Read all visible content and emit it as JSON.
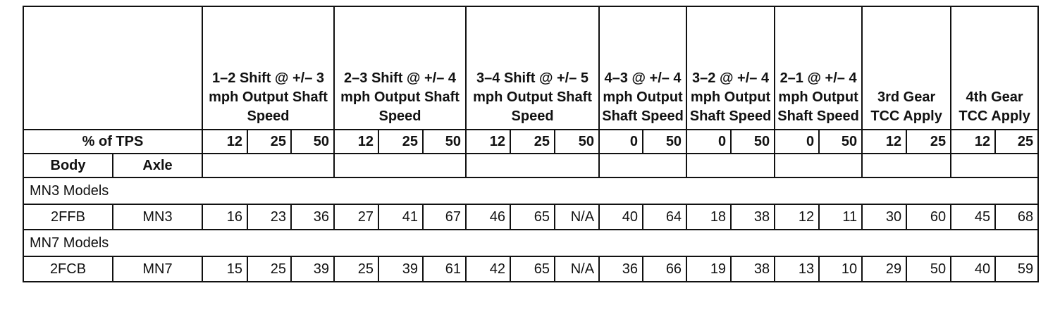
{
  "header_groups": [
    {
      "label": "1–2 Shift @ +/– 3 mph Output Shaft Speed",
      "tps": [
        "12",
        "25",
        "50"
      ]
    },
    {
      "label": "2–3 Shift @ +/– 4 mph Output Shaft Speed",
      "tps": [
        "12",
        "25",
        "50"
      ]
    },
    {
      "label": "3–4 Shift @ +/– 5 mph Output Shaft Speed",
      "tps": [
        "12",
        "25",
        "50"
      ]
    },
    {
      "label": "4–3 @ +/– 4 mph Output Shaft Speed",
      "tps": [
        "0",
        "50"
      ]
    },
    {
      "label": "3–2 @ +/– 4 mph Output Shaft Speed",
      "tps": [
        "0",
        "50"
      ]
    },
    {
      "label": "2–1 @ +/– 4 mph Output Shaft Speed",
      "tps": [
        "0",
        "50"
      ]
    },
    {
      "label": "3rd Gear TCC Apply",
      "tps": [
        "12",
        "25"
      ]
    },
    {
      "label": "4th Gear TCC Apply",
      "tps": [
        "12",
        "25"
      ]
    }
  ],
  "tps_label": "% of TPS",
  "body_label": "Body",
  "axle_label": "Axle",
  "groups": [
    {
      "title": "MN3 Models",
      "rows": [
        {
          "body": "2FFB",
          "axle": "MN3",
          "values": [
            "16",
            "23",
            "36",
            "27",
            "41",
            "67",
            "46",
            "65",
            "N/A",
            "40",
            "64",
            "18",
            "38",
            "12",
            "11",
            "30",
            "60",
            "45",
            "68"
          ]
        }
      ]
    },
    {
      "title": "MN7 Models",
      "rows": [
        {
          "body": "2FCB",
          "axle": "MN7",
          "values": [
            "15",
            "25",
            "39",
            "25",
            "39",
            "61",
            "42",
            "65",
            "N/A",
            "36",
            "66",
            "19",
            "38",
            "13",
            "10",
            "29",
            "50",
            "40",
            "59"
          ]
        }
      ]
    }
  ]
}
